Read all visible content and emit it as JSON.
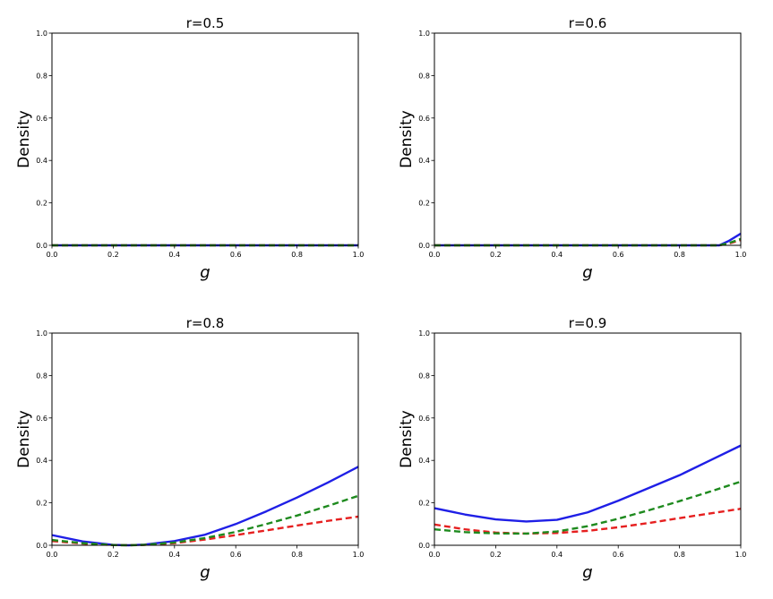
{
  "chart_data": [
    {
      "type": "line",
      "title": "r=0.5",
      "xlabel": "g",
      "ylabel": "Density",
      "xlim": [
        0,
        1
      ],
      "ylim": [
        0,
        1
      ],
      "xticks": [
        "0.0",
        "0.2",
        "0.4",
        "0.6",
        "0.8",
        "1.0"
      ],
      "yticks": [
        "0.0",
        "0.2",
        "0.4",
        "0.6",
        "0.8",
        "1.0"
      ],
      "x": [
        0,
        0.1,
        0.2,
        0.3,
        0.4,
        0.5,
        0.6,
        0.7,
        0.8,
        0.9,
        1.0
      ],
      "series": [
        {
          "color": "#1f1fe6",
          "style": "solid",
          "values": [
            0,
            0,
            0,
            0,
            0,
            0,
            0,
            0,
            0,
            0,
            0
          ]
        },
        {
          "color": "#e62020",
          "style": "dashed",
          "values": [
            0,
            0,
            0,
            0,
            0,
            0,
            0,
            0,
            0,
            0,
            0
          ]
        },
        {
          "color": "#1e8a1e",
          "style": "dashed",
          "values": [
            0,
            0,
            0,
            0,
            0,
            0,
            0,
            0,
            0,
            0,
            0
          ]
        }
      ]
    },
    {
      "type": "line",
      "title": "r=0.6",
      "xlabel": "g",
      "ylabel": "Density",
      "xlim": [
        0,
        1
      ],
      "ylim": [
        0,
        1
      ],
      "xticks": [
        "0.0",
        "0.2",
        "0.4",
        "0.6",
        "0.8",
        "1.0"
      ],
      "yticks": [
        "0.0",
        "0.2",
        "0.4",
        "0.6",
        "0.8",
        "1.0"
      ],
      "x": [
        0,
        0.1,
        0.2,
        0.3,
        0.4,
        0.5,
        0.6,
        0.7,
        0.8,
        0.9,
        0.93,
        0.96,
        1.0
      ],
      "series": [
        {
          "color": "#1f1fe6",
          "style": "solid",
          "values": [
            0,
            0,
            0,
            0,
            0,
            0,
            0,
            0,
            0,
            0,
            0,
            0.02,
            0.055
          ]
        },
        {
          "color": "#e62020",
          "style": "dashed",
          "values": [
            0,
            0,
            0,
            0,
            0,
            0,
            0,
            0,
            0,
            0,
            0,
            0.008,
            0.025
          ]
        },
        {
          "color": "#1e8a1e",
          "style": "dashed",
          "values": [
            0,
            0,
            0,
            0,
            0,
            0,
            0,
            0,
            0,
            0,
            0,
            0.01,
            0.03
          ]
        }
      ]
    },
    {
      "type": "line",
      "title": "r=0.8",
      "xlabel": "g",
      "ylabel": "Density",
      "xlim": [
        0,
        1
      ],
      "ylim": [
        0,
        1
      ],
      "xticks": [
        "0.0",
        "0.2",
        "0.4",
        "0.6",
        "0.8",
        "1.0"
      ],
      "yticks": [
        "0.0",
        "0.2",
        "0.4",
        "0.6",
        "0.8",
        "1.0"
      ],
      "x": [
        0,
        0.1,
        0.2,
        0.25,
        0.3,
        0.4,
        0.5,
        0.6,
        0.7,
        0.8,
        0.9,
        1.0
      ],
      "series": [
        {
          "color": "#1f1fe6",
          "style": "solid",
          "values": [
            0.048,
            0.018,
            0.002,
            0,
            0.003,
            0.02,
            0.05,
            0.1,
            0.16,
            0.225,
            0.295,
            0.37
          ]
        },
        {
          "color": "#e62020",
          "style": "dashed",
          "values": [
            0.02,
            0.008,
            0.001,
            0,
            0.002,
            0.01,
            0.027,
            0.048,
            0.07,
            0.093,
            0.115,
            0.135
          ]
        },
        {
          "color": "#1e8a1e",
          "style": "dashed",
          "values": [
            0.025,
            0.01,
            0.001,
            0,
            0.002,
            0.013,
            0.034,
            0.063,
            0.1,
            0.14,
            0.185,
            0.233
          ]
        }
      ]
    },
    {
      "type": "line",
      "title": "r=0.9",
      "xlabel": "g",
      "ylabel": "Density",
      "xlim": [
        0,
        1
      ],
      "ylim": [
        0,
        1
      ],
      "xticks": [
        "0.0",
        "0.2",
        "0.4",
        "0.6",
        "0.8",
        "1.0"
      ],
      "yticks": [
        "0.0",
        "0.2",
        "0.4",
        "0.6",
        "0.8",
        "1.0"
      ],
      "x": [
        0,
        0.1,
        0.2,
        0.3,
        0.4,
        0.5,
        0.6,
        0.7,
        0.8,
        0.9,
        1.0
      ],
      "series": [
        {
          "color": "#1f1fe6",
          "style": "solid",
          "values": [
            0.175,
            0.145,
            0.122,
            0.112,
            0.12,
            0.155,
            0.21,
            0.27,
            0.33,
            0.4,
            0.47
          ]
        },
        {
          "color": "#e62020",
          "style": "dashed",
          "values": [
            0.098,
            0.075,
            0.06,
            0.055,
            0.058,
            0.068,
            0.085,
            0.105,
            0.128,
            0.15,
            0.172
          ]
        },
        {
          "color": "#1e8a1e",
          "style": "dashed",
          "values": [
            0.075,
            0.062,
            0.056,
            0.055,
            0.065,
            0.09,
            0.125,
            0.165,
            0.208,
            0.253,
            0.3
          ]
        }
      ]
    }
  ]
}
